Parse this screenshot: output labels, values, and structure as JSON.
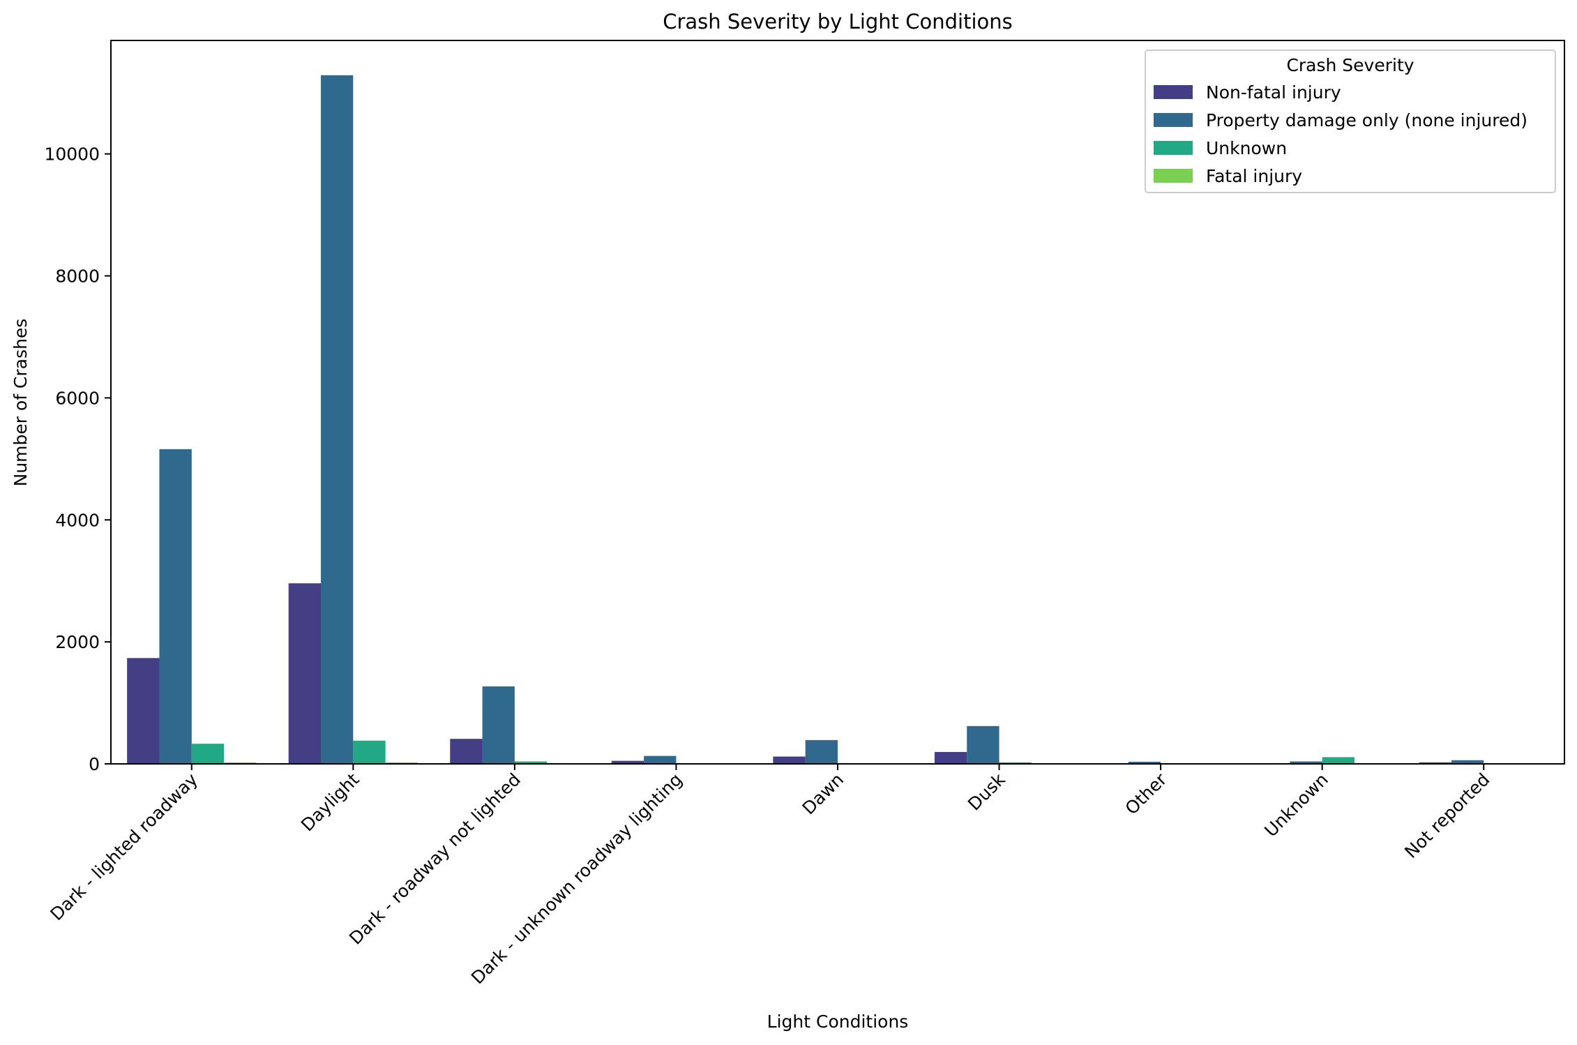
{
  "chart_data": {
    "type": "bar",
    "title": "Crash Severity by Light Conditions",
    "xlabel": "Light Conditions",
    "ylabel": "Number of Crashes",
    "ylim": [
      0,
      11860
    ],
    "yticks": [
      0,
      2000,
      4000,
      6000,
      8000,
      10000
    ],
    "grid": false,
    "legend": {
      "title": "Crash Severity",
      "placement": "top-right"
    },
    "categories": [
      "Dark - lighted roadway",
      "Daylight",
      "Dark - roadway not lighted",
      "Dark - unknown roadway lighting",
      "Dawn",
      "Dusk",
      "Other",
      "Unknown",
      "Not reported"
    ],
    "series": [
      {
        "name": "Non-fatal injury",
        "color": "#433e85",
        "values": [
          1735,
          2960,
          410,
          50,
          120,
          195,
          10,
          0,
          25
        ]
      },
      {
        "name": "Property damage only (none injured)",
        "color": "#31688e",
        "values": [
          5160,
          11290,
          1270,
          130,
          390,
          620,
          35,
          40,
          60
        ]
      },
      {
        "name": "Unknown",
        "color": "#22a884",
        "values": [
          330,
          380,
          40,
          10,
          10,
          25,
          5,
          110,
          5
        ]
      },
      {
        "name": "Fatal injury",
        "color": "#7ad151",
        "values": [
          25,
          25,
          10,
          0,
          0,
          0,
          0,
          0,
          0
        ]
      }
    ]
  }
}
